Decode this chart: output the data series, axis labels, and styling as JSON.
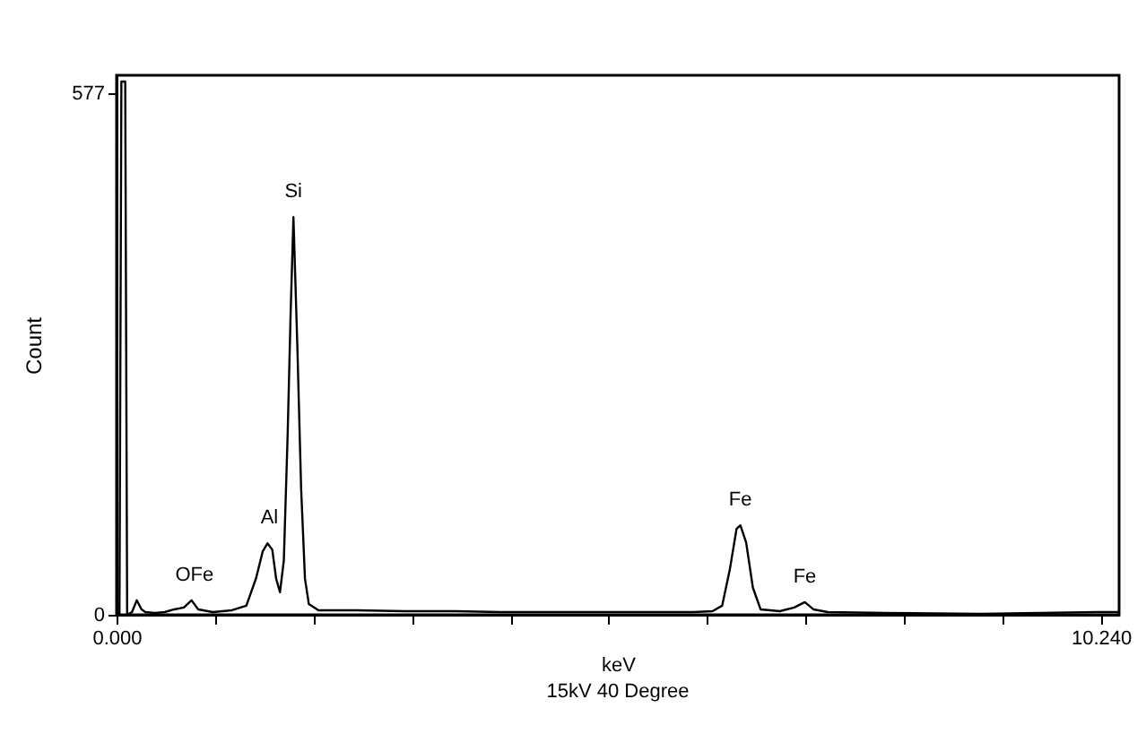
{
  "chart_data": {
    "type": "line",
    "xlabel": "keV",
    "ylabel": "Count",
    "annotations": [
      {
        "text": "OFe",
        "x": 0.81,
        "y": 16
      },
      {
        "text": "Al",
        "x": 1.59,
        "y": 79
      },
      {
        "text": "Si",
        "x": 1.84,
        "y": 440
      },
      {
        "text": "Fe",
        "x": 6.49,
        "y": 99
      },
      {
        "text": "Fe",
        "x": 7.16,
        "y": 14
      },
      "15kV 40 Degree"
    ],
    "xlim": [
      0,
      10.43
    ],
    "ylim": [
      0,
      597
    ],
    "xticks": [
      {
        "value": 0,
        "label": "0.000"
      },
      {
        "value": 1.024,
        "label": null
      },
      {
        "value": 2.048,
        "label": null
      },
      {
        "value": 3.072,
        "label": null
      },
      {
        "value": 4.096,
        "label": null
      },
      {
        "value": 5.12,
        "label": null
      },
      {
        "value": 6.144,
        "label": null
      },
      {
        "value": 7.168,
        "label": null
      },
      {
        "value": 8.192,
        "label": null
      },
      {
        "value": 9.216,
        "label": null
      },
      {
        "value": 10.24,
        "label": "10.240"
      }
    ],
    "yticks": [
      0,
      577
    ],
    "series": [
      {
        "color": "#000000",
        "x": [
          0,
          0.03,
          0.05,
          0.09,
          0.11,
          0.16,
          0.21,
          0.26,
          0.3,
          0.4,
          0.5,
          0.6,
          0.7,
          0.78,
          0.85,
          1.0,
          1.2,
          1.35,
          1.45,
          1.52,
          1.57,
          1.62,
          1.66,
          1.7,
          1.74,
          1.78,
          1.81,
          1.84,
          1.88,
          1.92,
          1.96,
          2.0,
          2.1,
          2.5,
          3.0,
          3.5,
          4.0,
          4.5,
          5.0,
          5.5,
          6.0,
          6.2,
          6.3,
          6.38,
          6.45,
          6.49,
          6.55,
          6.62,
          6.7,
          6.9,
          7.05,
          7.16,
          7.25,
          7.4,
          8.0,
          9.0,
          10.2,
          10.43
        ],
        "values": [
          0,
          0,
          590,
          590,
          0,
          3,
          16,
          6,
          3,
          2,
          3,
          6,
          8,
          16,
          6,
          3,
          5,
          10,
          40,
          70,
          79,
          72,
          40,
          25,
          60,
          200,
          330,
          440,
          300,
          140,
          40,
          12,
          5,
          5,
          4,
          4,
          3,
          3,
          3,
          3,
          3,
          4,
          10,
          50,
          95,
          99,
          80,
          30,
          6,
          4,
          8,
          14,
          6,
          3,
          2,
          1,
          3,
          3
        ]
      }
    ]
  }
}
